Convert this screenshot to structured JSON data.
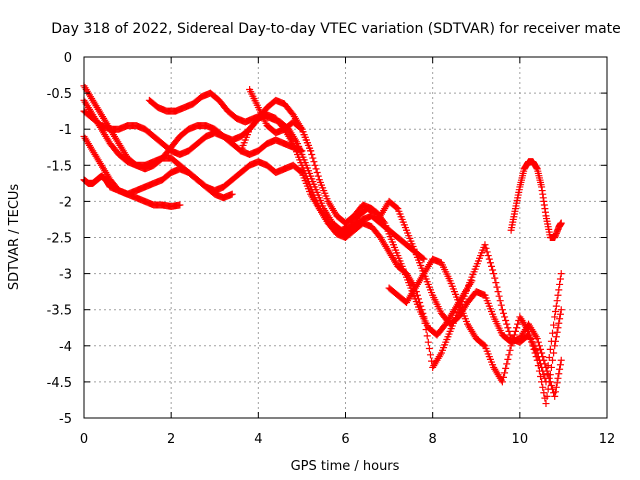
{
  "chart_data": {
    "type": "scatter",
    "title": "Day 318 of 2022, Sidereal Day-to-day VTEC variation (SDTVAR) for receiver mate",
    "xlabel": "GPS time / hours",
    "ylabel": "SDTVAR / TECUs",
    "xlim": [
      0,
      12
    ],
    "ylim": [
      -5,
      0
    ],
    "xticks": [
      0,
      2,
      4,
      6,
      8,
      10,
      12
    ],
    "xtick_labels": [
      "0",
      "2",
      "4",
      "6",
      "8",
      "10",
      "12"
    ],
    "yticks": [
      0,
      -0.5,
      -1,
      -1.5,
      -2,
      -2.5,
      -3,
      -3.5,
      -4,
      -4.5,
      -5
    ],
    "ytick_labels": [
      "0",
      "-0.5",
      "-1",
      "-1.5",
      "-2",
      "-2.5",
      "-3",
      "-3.5",
      "-4",
      "-4.5",
      "-5"
    ],
    "grid": true,
    "marker": "+",
    "color": "#ff0000",
    "series": [
      {
        "name": "trace-1",
        "x": [
          0.0,
          0.1,
          0.2,
          0.3,
          0.4,
          0.5,
          0.6,
          0.8,
          1.0,
          1.2,
          1.4,
          1.6,
          1.8,
          2.0,
          2.2
        ],
        "y": [
          -1.7,
          -1.75,
          -1.75,
          -1.7,
          -1.65,
          -1.7,
          -1.8,
          -1.85,
          -1.9,
          -1.95,
          -2.0,
          -2.05,
          -2.05,
          -2.07,
          -2.05
        ]
      },
      {
        "name": "trace-2",
        "x": [
          0.0,
          0.2,
          0.4,
          0.6,
          0.8,
          1.0,
          1.2,
          1.4,
          1.6,
          1.8,
          2.0,
          2.2,
          2.4,
          2.6,
          2.8,
          3.0,
          3.2,
          3.4
        ],
        "y": [
          -1.1,
          -1.3,
          -1.5,
          -1.7,
          -1.85,
          -1.9,
          -1.85,
          -1.8,
          -1.75,
          -1.7,
          -1.6,
          -1.55,
          -1.6,
          -1.7,
          -1.8,
          -1.9,
          -1.95,
          -1.9
        ]
      },
      {
        "name": "trace-3",
        "x": [
          0.0,
          0.2,
          0.4,
          0.6,
          0.8,
          1.0,
          1.2,
          1.4,
          1.6,
          1.8,
          2.0,
          2.2,
          2.4,
          2.6,
          2.8,
          3.0,
          3.2,
          3.4,
          3.6,
          3.8,
          4.0,
          4.2,
          4.4,
          4.6,
          4.8,
          5.0,
          5.2
        ],
        "y": [
          -0.4,
          -0.6,
          -0.8,
          -1.0,
          -1.2,
          -1.4,
          -1.5,
          -1.55,
          -1.5,
          -1.4,
          -1.25,
          -1.1,
          -1.0,
          -0.95,
          -0.95,
          -1.0,
          -1.1,
          -1.15,
          -1.1,
          -1.0,
          -0.85,
          -0.7,
          -0.6,
          -0.65,
          -0.8,
          -1.0,
          -1.3
        ]
      },
      {
        "name": "trace-4",
        "x": [
          0.0,
          0.2,
          0.4,
          0.6,
          0.8,
          1.0,
          1.2,
          1.4,
          1.6,
          1.8,
          2.0,
          2.2,
          2.4,
          2.6,
          2.8,
          3.0,
          3.2,
          3.4,
          3.6,
          3.8,
          4.0,
          4.2,
          4.4,
          4.6,
          4.8,
          5.0
        ],
        "y": [
          -0.75,
          -0.85,
          -0.95,
          -1.0,
          -1.0,
          -0.95,
          -0.95,
          -1.0,
          -1.1,
          -1.2,
          -1.3,
          -1.35,
          -1.3,
          -1.2,
          -1.1,
          -1.05,
          -1.1,
          -1.2,
          -1.3,
          -1.35,
          -1.3,
          -1.2,
          -1.15,
          -1.2,
          -1.25,
          -1.3
        ]
      },
      {
        "name": "trace-5",
        "x": [
          0.0,
          0.2,
          0.4,
          0.6,
          0.8,
          1.0,
          1.2,
          1.4,
          1.6,
          1.8,
          2.0,
          2.2,
          2.4,
          2.6,
          2.8,
          3.0,
          3.2,
          3.4,
          3.6,
          3.8,
          4.0,
          4.2,
          4.4,
          4.6,
          4.8,
          5.0,
          5.2,
          5.4,
          5.6,
          5.8,
          6.0,
          6.2,
          6.4,
          6.6,
          6.8,
          7.0,
          7.2,
          7.4,
          7.6,
          7.8
        ],
        "y": [
          -0.6,
          -0.8,
          -1.0,
          -1.2,
          -1.35,
          -1.45,
          -1.5,
          -1.5,
          -1.45,
          -1.4,
          -1.4,
          -1.5,
          -1.6,
          -1.7,
          -1.8,
          -1.85,
          -1.8,
          -1.7,
          -1.6,
          -1.5,
          -1.45,
          -1.5,
          -1.6,
          -1.55,
          -1.5,
          -1.6,
          -1.9,
          -2.1,
          -2.3,
          -2.4,
          -2.45,
          -2.35,
          -2.25,
          -2.2,
          -2.3,
          -2.4,
          -2.5,
          -2.6,
          -2.7,
          -2.8
        ]
      },
      {
        "name": "trace-6",
        "x": [
          1.5,
          1.7,
          1.9,
          2.1,
          2.3,
          2.5,
          2.7,
          2.9,
          3.1,
          3.3,
          3.5,
          3.7,
          3.9,
          4.1,
          4.3,
          4.5,
          4.7,
          4.9,
          5.1,
          5.3,
          5.5,
          5.7,
          5.9,
          6.1,
          6.3,
          6.5,
          6.7,
          6.9,
          7.1,
          7.3,
          7.5,
          7.7,
          7.9,
          8.1,
          8.3,
          8.5,
          8.7,
          8.9
        ],
        "y": [
          -0.6,
          -0.7,
          -0.75,
          -0.75,
          -0.7,
          -0.65,
          -0.55,
          -0.5,
          -0.6,
          -0.75,
          -0.85,
          -0.9,
          -0.85,
          -0.8,
          -0.85,
          -0.9,
          -1.0,
          -1.2,
          -1.5,
          -1.8,
          -2.1,
          -2.3,
          -2.4,
          -2.35,
          -2.2,
          -2.1,
          -2.15,
          -2.3,
          -2.6,
          -2.9,
          -3.2,
          -3.5,
          -3.75,
          -3.85,
          -3.7,
          -3.5,
          -3.3,
          -3.1
        ]
      },
      {
        "name": "trace-7",
        "x": [
          3.8,
          4.0,
          4.2,
          4.4,
          4.6,
          4.8,
          5.0,
          5.2,
          5.4,
          5.6,
          5.8,
          6.0,
          6.2,
          6.4,
          6.6,
          6.8,
          7.0,
          7.2,
          7.4,
          7.6,
          7.8,
          8.0,
          8.2,
          8.4,
          8.6,
          8.8,
          9.0,
          9.2,
          9.4,
          9.6,
          9.8,
          10.0,
          10.2,
          10.4,
          10.6,
          10.8,
          10.95
        ],
        "y": [
          -0.45,
          -0.7,
          -0.95,
          -1.05,
          -1.0,
          -0.9,
          -1.0,
          -1.3,
          -1.7,
          -2.0,
          -2.2,
          -2.3,
          -2.2,
          -2.05,
          -2.1,
          -2.2,
          -2.0,
          -2.1,
          -2.4,
          -2.7,
          -3.0,
          -3.3,
          -3.55,
          -3.7,
          -3.6,
          -3.4,
          -3.25,
          -3.3,
          -3.6,
          -3.85,
          -3.95,
          -3.9,
          -3.7,
          -3.9,
          -4.3,
          -4.7,
          -4.2
        ]
      },
      {
        "name": "trace-8",
        "x": [
          3.6,
          3.8,
          4.0,
          4.2,
          4.4,
          4.6,
          4.8,
          5.0,
          5.2,
          5.4,
          5.6,
          5.8,
          6.0,
          6.2,
          6.4,
          6.6,
          6.8,
          7.0,
          7.2,
          7.4,
          7.6,
          7.8,
          8.0,
          8.2,
          8.4,
          8.6,
          8.8,
          9.0,
          9.2,
          9.4,
          9.6,
          9.8,
          10.0,
          10.2,
          10.4,
          10.6,
          10.8,
          10.95
        ],
        "y": [
          -1.3,
          -1.0,
          -0.85,
          -0.8,
          -0.85,
          -1.0,
          -1.2,
          -1.5,
          -1.8,
          -2.1,
          -2.3,
          -2.45,
          -2.5,
          -2.4,
          -2.3,
          -2.35,
          -2.5,
          -2.7,
          -2.9,
          -3.0,
          -3.2,
          -3.6,
          -4.3,
          -4.1,
          -3.8,
          -3.5,
          -3.2,
          -2.9,
          -2.6,
          -3.0,
          -3.5,
          -3.9,
          -3.95,
          -3.85,
          -4.1,
          -4.5,
          -3.6,
          -3.0
        ]
      },
      {
        "name": "trace-9",
        "x": [
          7.0,
          7.2,
          7.4,
          7.6,
          7.8,
          8.0,
          8.2,
          8.4,
          8.6,
          8.8,
          9.0,
          9.2,
          9.4,
          9.6,
          9.8,
          10.0,
          10.2,
          10.4,
          10.6,
          10.8,
          10.95
        ],
        "y": [
          -3.2,
          -3.3,
          -3.4,
          -3.2,
          -3.0,
          -2.8,
          -2.85,
          -3.1,
          -3.4,
          -3.7,
          -3.9,
          -4.0,
          -4.3,
          -4.5,
          -4.0,
          -3.6,
          -3.8,
          -4.2,
          -4.8,
          -4.0,
          -3.5
        ]
      },
      {
        "name": "trace-10",
        "x": [
          9.8,
          9.9,
          10.0,
          10.1,
          10.2,
          10.3,
          10.4,
          10.5,
          10.6,
          10.7,
          10.8,
          10.9,
          10.95
        ],
        "y": [
          -2.4,
          -2.1,
          -1.8,
          -1.55,
          -1.45,
          -1.45,
          -1.55,
          -1.8,
          -2.2,
          -2.5,
          -2.5,
          -2.35,
          -2.3
        ]
      }
    ]
  }
}
